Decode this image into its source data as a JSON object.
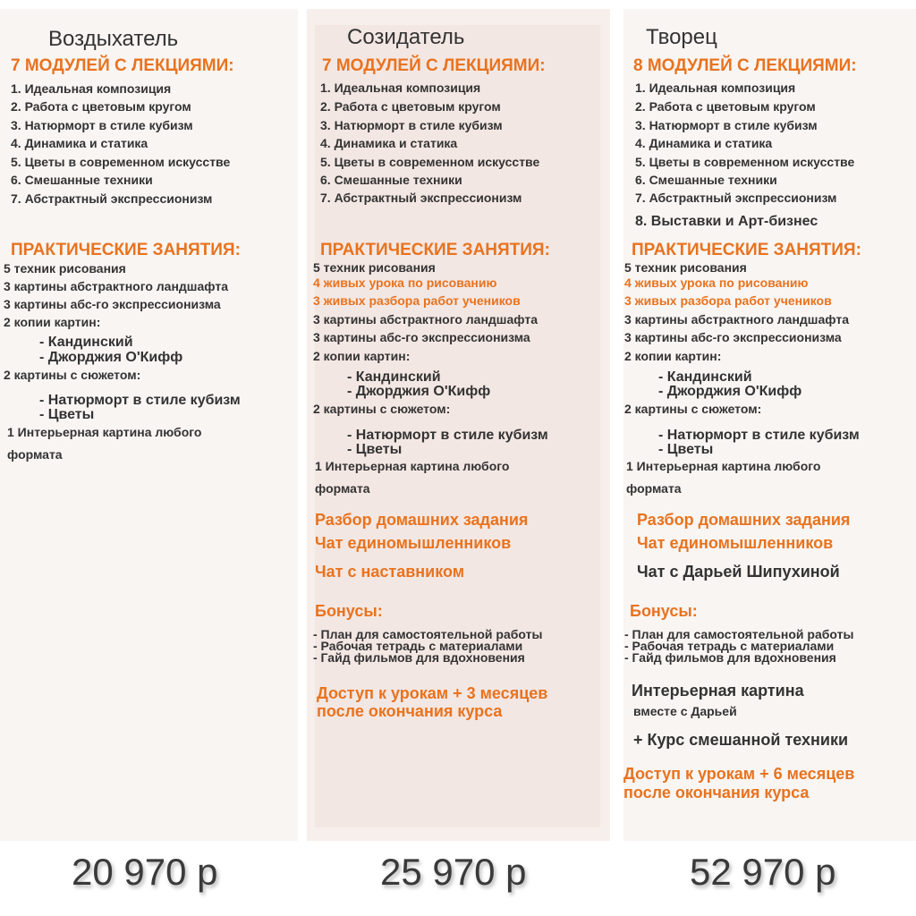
{
  "colors": {
    "accent": "#e8731f",
    "text": "#333333"
  },
  "plans": [
    {
      "title": "Воздыхатель",
      "modules_header": "7 МОДУЛЕЙ С ЛЕКЦИЯМИ:",
      "modules": [
        "1. Идеальная композиция",
        "2. Работа с цветовым кругом",
        "3. Натюрморт в стиле кубизм",
        "4. Динамика и статика",
        "5. Цветы в современном искусстве",
        "6. Смешанные техники",
        "7. Абстрактный экспрессионизм"
      ],
      "practice_header": "ПРАКТИЧЕСКИЕ ЗАНЯТИЯ:",
      "practice": [
        "5 техник рисования",
        "3 картины абстрактного ландшафта",
        "3 картины абс-го экспрессионизма",
        "2 копии картин:",
        "- Кандинский",
        "- Джорджия О'Кифф",
        "2 картины с сюжетом:",
        "- Натюрморт в стиле кубизм",
        "- Цветы",
        "1 Интерьерная картина любого",
        "формата"
      ],
      "price": "20 970 р"
    },
    {
      "title": "Созидатель",
      "modules_header": "7 МОДУЛЕЙ С ЛЕКЦИЯМИ:",
      "modules": [
        "1. Идеальная композиция",
        "2. Работа с цветовым кругом",
        "3. Натюрморт в стиле кубизм",
        "4. Динамика и статика",
        "5. Цветы в современном искусстве",
        "6. Смешанные техники",
        "7. Абстрактный экспрессионизм"
      ],
      "practice_header": "ПРАКТИЧЕСКИЕ ЗАНЯТИЯ:",
      "practice": [
        "5 техник рисования",
        "4 живых урока по рисованию",
        "3 живых разбора работ учеников",
        "3 картины абстрактного ландшафта",
        "3 картины абс-го экспрессионизма",
        "2 копии картин:",
        "- Кандинский",
        "- Джорджия О'Кифф",
        "2 картины с сюжетом:",
        "- Натюрморт в стиле кубизм",
        "- Цветы",
        "1 Интерьерная картина любого",
        "формата"
      ],
      "extras": [
        "Разбор домашних задания",
        "Чат единомышленников",
        "Чат с наставником"
      ],
      "bonus_header": "Бонусы:",
      "bonuses": [
        "- План для самостоятельной работы",
        "- Рабочая тетрадь с материалами",
        "- Гайд фильмов для вдохновения"
      ],
      "access": [
        "Доступ к урокам + 3 месяцев",
        "после окончания курса"
      ],
      "price": "25 970 р"
    },
    {
      "title": "Творец",
      "modules_header": "8 МОДУЛЕЙ С ЛЕКЦИЯМИ:",
      "modules": [
        "1. Идеальная композиция",
        "2. Работа с цветовым кругом",
        "3. Натюрморт в стиле кубизм",
        "4. Динамика и статика",
        "5. Цветы в современном искусстве",
        "6. Смешанные техники",
        "7. Абстрактный экспрессионизм",
        "8. Выставки и Арт-бизнес"
      ],
      "practice_header": "ПРАКТИЧЕСКИЕ ЗАНЯТИЯ:",
      "practice": [
        "5 техник рисования",
        "4 живых урока по рисованию",
        "3 живых разбора работ учеников",
        "3 картины абстрактного ландшафта",
        "3 картины абс-го экспрессионизма",
        "2 копии картин:",
        "- Кандинский",
        "- Джорджия О'Кифф",
        "2 картины с сюжетом:",
        "- Натюрморт в стиле кубизм",
        "- Цветы",
        "1 Интерьерная картина любого",
        "формата"
      ],
      "extras": [
        "Разбор домашних задания",
        "Чат единомышленников",
        "Чат с Дарьей Шипухиной"
      ],
      "bonus_header": "Бонусы:",
      "bonuses": [
        "- План для самостоятельной работы",
        "- Рабочая тетрадь с материалами",
        "- Гайд фильмов для вдохновения"
      ],
      "special": [
        "Интерьерная картина",
        "вместе с Дарьей",
        "+ Курс смешанной техники"
      ],
      "access": [
        "Доступ к урокам + 6 месяцев",
        "после окончания курса"
      ],
      "price": "52 970 р"
    }
  ]
}
